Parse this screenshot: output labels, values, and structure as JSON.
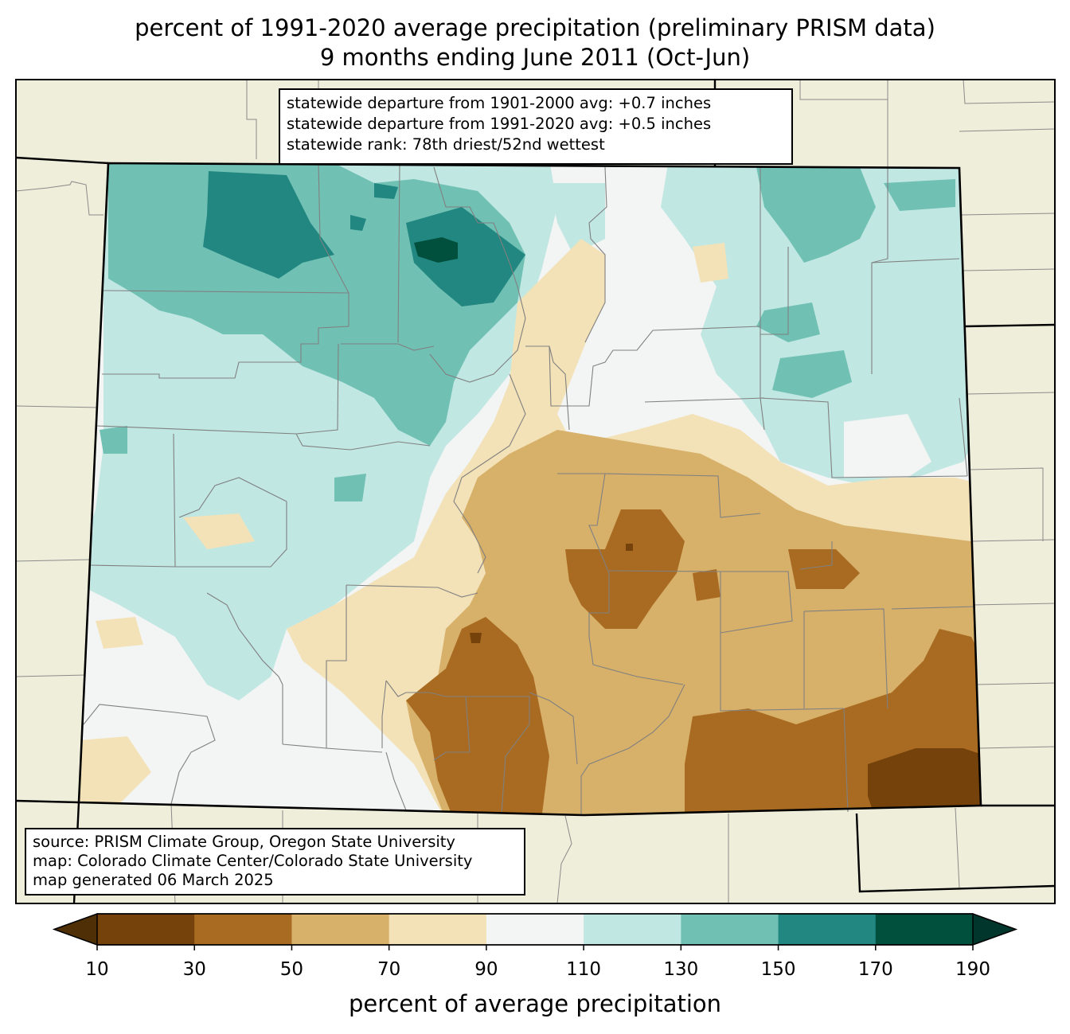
{
  "title_line1": "percent of 1991-2020 average precipitation (preliminary PRISM data)",
  "title_line2": "9 months ending June 2011 (Oct-Jun)",
  "stats": {
    "line1": "statewide departure from 1901-2000 avg: +0.7 inches",
    "line2": "statewide departure from 1991-2020 avg: +0.5 inches",
    "line3": "statewide rank: 78th driest/52nd wettest"
  },
  "credits": {
    "line1": "source: PRISM Climate Group, Oregon State University",
    "line2": "map: Colorado Climate Center/Colorado State University",
    "line3": "map generated 06 March 2025"
  },
  "colorbar": {
    "label": "percent of average precipitation",
    "ticks": [
      "10",
      "30",
      "50",
      "70",
      "90",
      "110",
      "130",
      "150",
      "170",
      "190"
    ],
    "colors": [
      "#74420a",
      "#a96b22",
      "#d7b06a",
      "#f3e2b7",
      "#f3f4f4",
      "#c0e7e2",
      "#71c0b4",
      "#218780",
      "#01503e"
    ],
    "under_color": "#4f2f05",
    "over_color": "#00362c"
  },
  "colors": {
    "background": "#efeedb",
    "state_outline": "#000000",
    "county_lines": "#808080"
  }
}
